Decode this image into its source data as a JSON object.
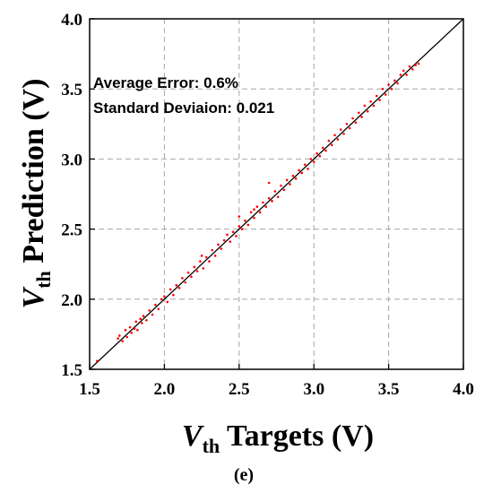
{
  "chart_data": {
    "type": "scatter",
    "xlabel": {
      "symbol": "V",
      "subscript": "th",
      "rest": " Targets (V)"
    },
    "ylabel": {
      "symbol": "V",
      "subscript": "th",
      "rest": " Prediction (V)"
    },
    "xlim": [
      1.5,
      4.0
    ],
    "ylim": [
      1.5,
      4.0
    ],
    "xticks": [
      "1.5",
      "2.0",
      "2.5",
      "3.0",
      "3.5",
      "4.0"
    ],
    "yticks": [
      "1.5",
      "2.0",
      "2.5",
      "3.0",
      "3.5",
      "4.0"
    ],
    "grid": true,
    "annotations": [
      "Average Error: 0.6%",
      "Standard Deviaion: 0.021"
    ],
    "caption": "(e)",
    "reference_line": {
      "from": [
        1.5,
        1.5
      ],
      "to": [
        4.0,
        4.0
      ],
      "color": "#000000"
    },
    "point_color": "#ff0000",
    "points": [
      [
        1.55,
        1.56
      ],
      [
        1.69,
        1.72
      ],
      [
        1.7,
        1.74
      ],
      [
        1.72,
        1.7
      ],
      [
        1.74,
        1.78
      ],
      [
        1.75,
        1.73
      ],
      [
        1.77,
        1.8
      ],
      [
        1.78,
        1.76
      ],
      [
        1.8,
        1.79
      ],
      [
        1.81,
        1.84
      ],
      [
        1.82,
        1.78
      ],
      [
        1.84,
        1.86
      ],
      [
        1.85,
        1.83
      ],
      [
        1.86,
        1.88
      ],
      [
        1.88,
        1.85
      ],
      [
        1.9,
        1.92
      ],
      [
        1.92,
        1.89
      ],
      [
        1.94,
        1.96
      ],
      [
        1.96,
        1.93
      ],
      [
        1.98,
        2.0
      ],
      [
        2.0,
        2.02
      ],
      [
        2.02,
        1.98
      ],
      [
        2.04,
        2.07
      ],
      [
        2.06,
        2.03
      ],
      [
        2.08,
        2.1
      ],
      [
        2.1,
        2.08
      ],
      [
        2.12,
        2.15
      ],
      [
        2.14,
        2.12
      ],
      [
        2.16,
        2.19
      ],
      [
        2.18,
        2.16
      ],
      [
        2.2,
        2.23
      ],
      [
        2.22,
        2.2
      ],
      [
        2.24,
        2.27
      ],
      [
        2.25,
        2.31
      ],
      [
        2.26,
        2.22
      ],
      [
        2.28,
        2.3
      ],
      [
        2.3,
        2.27
      ],
      [
        2.32,
        2.35
      ],
      [
        2.34,
        2.31
      ],
      [
        2.36,
        2.39
      ],
      [
        2.38,
        2.36
      ],
      [
        2.4,
        2.42
      ],
      [
        2.42,
        2.46
      ],
      [
        2.44,
        2.41
      ],
      [
        2.46,
        2.48
      ],
      [
        2.48,
        2.45
      ],
      [
        2.5,
        2.52
      ],
      [
        2.5,
        2.59
      ],
      [
        2.52,
        2.5
      ],
      [
        2.54,
        2.56
      ],
      [
        2.56,
        2.53
      ],
      [
        2.58,
        2.62
      ],
      [
        2.6,
        2.64
      ],
      [
        2.6,
        2.58
      ],
      [
        2.62,
        2.66
      ],
      [
        2.64,
        2.62
      ],
      [
        2.66,
        2.69
      ],
      [
        2.68,
        2.66
      ],
      [
        2.7,
        2.72
      ],
      [
        2.7,
        2.83
      ],
      [
        2.72,
        2.7
      ],
      [
        2.74,
        2.77
      ],
      [
        2.76,
        2.73
      ],
      [
        2.78,
        2.81
      ],
      [
        2.8,
        2.78
      ],
      [
        2.82,
        2.85
      ],
      [
        2.84,
        2.82
      ],
      [
        2.86,
        2.88
      ],
      [
        2.88,
        2.86
      ],
      [
        2.9,
        2.92
      ],
      [
        2.92,
        2.9
      ],
      [
        2.94,
        2.96
      ],
      [
        2.96,
        2.93
      ],
      [
        2.98,
        3.0
      ],
      [
        3.0,
        2.98
      ],
      [
        3.02,
        3.04
      ],
      [
        3.04,
        3.02
      ],
      [
        3.06,
        3.08
      ],
      [
        3.08,
        3.06
      ],
      [
        3.1,
        3.13
      ],
      [
        3.12,
        3.1
      ],
      [
        3.14,
        3.17
      ],
      [
        3.16,
        3.14
      ],
      [
        3.18,
        3.21
      ],
      [
        3.2,
        3.18
      ],
      [
        3.22,
        3.25
      ],
      [
        3.24,
        3.22
      ],
      [
        3.26,
        3.29
      ],
      [
        3.28,
        3.26
      ],
      [
        3.3,
        3.33
      ],
      [
        3.32,
        3.3
      ],
      [
        3.34,
        3.38
      ],
      [
        3.36,
        3.34
      ],
      [
        3.38,
        3.41
      ],
      [
        3.4,
        3.38
      ],
      [
        3.42,
        3.45
      ],
      [
        3.44,
        3.42
      ],
      [
        3.46,
        3.5
      ],
      [
        3.48,
        3.46
      ],
      [
        3.5,
        3.53
      ],
      [
        3.52,
        3.5
      ],
      [
        3.54,
        3.56
      ],
      [
        3.56,
        3.54
      ],
      [
        3.58,
        3.6
      ],
      [
        3.6,
        3.63
      ],
      [
        3.62,
        3.6
      ],
      [
        3.64,
        3.66
      ],
      [
        3.66,
        3.64
      ],
      [
        3.68,
        3.67
      ],
      [
        3.7,
        3.68
      ]
    ]
  }
}
